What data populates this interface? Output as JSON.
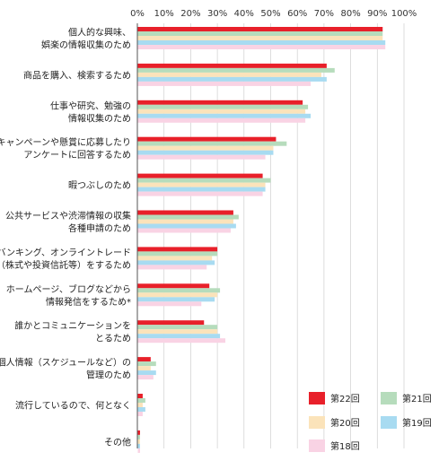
{
  "chart_data": {
    "type": "bar",
    "orientation": "horizontal",
    "xlim": [
      0,
      100
    ],
    "x_ticks": [
      "0%",
      "10%",
      "20%",
      "30%",
      "40%",
      "50%",
      "60%",
      "70%",
      "80%",
      "90%",
      "100%"
    ],
    "grid": true,
    "legend_position": "bottom-right",
    "categories": [
      [
        "個人的な興味、",
        "娯楽の情報収集のため"
      ],
      [
        "商品を購入、検索するため"
      ],
      [
        "仕事や研究、勉強の",
        "情報収集のため"
      ],
      [
        "キャンペーンや懸賞に応募したり",
        "アンケートに回答するため"
      ],
      [
        "暇つぶしのため"
      ],
      [
        "公共サービスや渋滞情報の収集",
        "各種申請のため"
      ],
      [
        "ネットバンキング、オンライントレード",
        "（株式や投資信託等）をするため"
      ],
      [
        "ホームページ、ブログなどから",
        "情報発信をするため*"
      ],
      [
        "誰かとコミュニケーションを",
        "とるため"
      ],
      [
        "個人情報（スケジュールなど）の",
        "管理のため"
      ],
      [
        "流行しているので、何となく"
      ],
      [
        "その他"
      ]
    ],
    "series": [
      {
        "name": "第22回",
        "color": "#e8202a",
        "values": [
          92,
          71,
          62,
          52,
          47,
          36,
          30,
          27,
          25,
          5,
          2,
          1
        ]
      },
      {
        "name": "第21回",
        "color": "#b6dcbc",
        "values": [
          92,
          74,
          64,
          56,
          50,
          38,
          30,
          31,
          30,
          7,
          3,
          1
        ]
      },
      {
        "name": "第20回",
        "color": "#fbe3ba",
        "values": [
          92,
          69,
          63,
          51,
          48,
          36,
          28,
          30,
          30,
          5,
          2,
          1
        ]
      },
      {
        "name": "第19回",
        "color": "#a8dbf1",
        "values": [
          93,
          71,
          65,
          51,
          48,
          37,
          29,
          29,
          31,
          7,
          3,
          1
        ]
      },
      {
        "name": "第18回",
        "color": "#f9d3e4",
        "values": [
          93,
          65,
          63,
          48,
          47,
          35,
          26,
          24,
          33,
          6,
          2,
          1
        ]
      }
    ]
  }
}
